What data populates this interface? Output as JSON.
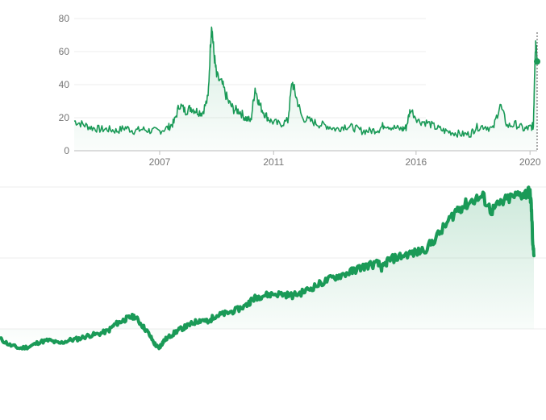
{
  "chart_data": [
    {
      "type": "area",
      "title": "",
      "xlabel": "",
      "ylabel": "",
      "ylim": [
        0,
        80
      ],
      "xlim": [
        2004.0,
        2020.25
      ],
      "y_ticks": [
        "0",
        "20",
        "40",
        "60",
        "80"
      ],
      "x_ticks": [
        {
          "label": "2007",
          "value": 2007.0
        },
        {
          "label": "2011",
          "value": 2011.0
        },
        {
          "label": "2016",
          "value": 2016.0
        },
        {
          "label": "2020",
          "value": 2020.0
        }
      ],
      "grid": true,
      "line_color": "#1a9a57",
      "series": [
        {
          "x": [
            2004.0,
            2004.3,
            2004.6,
            2004.9,
            2005.2,
            2005.5,
            2005.8,
            2006.1,
            2006.4,
            2006.7,
            2007.0,
            2007.3,
            2007.5,
            2007.7,
            2007.9,
            2008.1,
            2008.3,
            2008.5,
            2008.7,
            2008.82,
            2008.9,
            2009.0,
            2009.2,
            2009.4,
            2009.6,
            2009.8,
            2010.0,
            2010.2,
            2010.35,
            2010.5,
            2010.7,
            2010.9,
            2011.2,
            2011.5,
            2011.65,
            2011.8,
            2012.0,
            2012.3,
            2012.6,
            2012.9,
            2013.2,
            2013.5,
            2013.8,
            2014.1,
            2014.4,
            2014.7,
            2014.9,
            2015.2,
            2015.5,
            2015.65,
            2015.8,
            2016.1,
            2016.4,
            2016.7,
            2017.0,
            2017.3,
            2017.6,
            2017.9,
            2018.1,
            2018.4,
            2018.7,
            2018.95,
            2019.2,
            2019.5,
            2019.8,
            2020.0,
            2020.12,
            2020.17,
            2020.21,
            2020.25
          ],
          "values": [
            18,
            16,
            14,
            13,
            13,
            12,
            14,
            12,
            13,
            12,
            12,
            14,
            17,
            28,
            24,
            26,
            24,
            23,
            32,
            78,
            60,
            45,
            40,
            30,
            25,
            24,
            20,
            18,
            38,
            28,
            22,
            18,
            16,
            18,
            42,
            32,
            20,
            18,
            16,
            15,
            13,
            15,
            14,
            12,
            12,
            13,
            16,
            14,
            13,
            14,
            25,
            18,
            17,
            14,
            12,
            11,
            10,
            10,
            14,
            15,
            13,
            28,
            15,
            16,
            13,
            14,
            15,
            55,
            68,
            54
          ]
        }
      ]
    },
    {
      "type": "area",
      "title": "",
      "xlabel": "",
      "ylabel": "",
      "ylim": [
        0,
        100
      ],
      "grid": true,
      "line_color": "#1a9a57",
      "series": [
        {
          "x": [
            2004.0,
            2004.3,
            2004.6,
            2004.9,
            2005.2,
            2005.5,
            2005.8,
            2006.1,
            2006.4,
            2006.7,
            2007.0,
            2007.3,
            2007.5,
            2007.7,
            2007.9,
            2008.1,
            2008.3,
            2008.5,
            2008.7,
            2008.82,
            2008.9,
            2009.0,
            2009.2,
            2009.4,
            2009.6,
            2009.8,
            2010.0,
            2010.2,
            2010.35,
            2010.5,
            2010.7,
            2010.9,
            2011.2,
            2011.5,
            2011.65,
            2011.8,
            2012.0,
            2012.3,
            2012.6,
            2012.9,
            2013.2,
            2013.5,
            2013.8,
            2014.1,
            2014.4,
            2014.7,
            2014.9,
            2015.2,
            2015.5,
            2015.65,
            2015.8,
            2016.1,
            2016.4,
            2016.7,
            2017.0,
            2017.3,
            2017.6,
            2017.9,
            2018.1,
            2018.4,
            2018.7,
            2018.95,
            2019.2,
            2019.5,
            2019.8,
            2020.0,
            2020.12,
            2020.17,
            2020.21,
            2020.25
          ],
          "values": [
            8,
            4,
            2,
            3,
            6,
            7,
            5,
            7,
            8,
            10,
            11,
            13,
            17,
            19,
            21,
            22,
            17,
            12,
            5,
            2,
            4,
            7,
            10,
            13,
            15,
            17,
            19,
            20,
            18,
            22,
            23,
            24,
            26,
            29,
            32,
            34,
            35,
            36,
            36,
            35,
            37,
            40,
            43,
            46,
            48,
            50,
            52,
            54,
            55,
            52,
            57,
            59,
            61,
            62,
            65,
            72,
            80,
            89,
            91,
            95,
            97,
            88,
            92,
            96,
            98,
            99,
            100,
            92,
            70,
            60
          ]
        }
      ]
    }
  ]
}
